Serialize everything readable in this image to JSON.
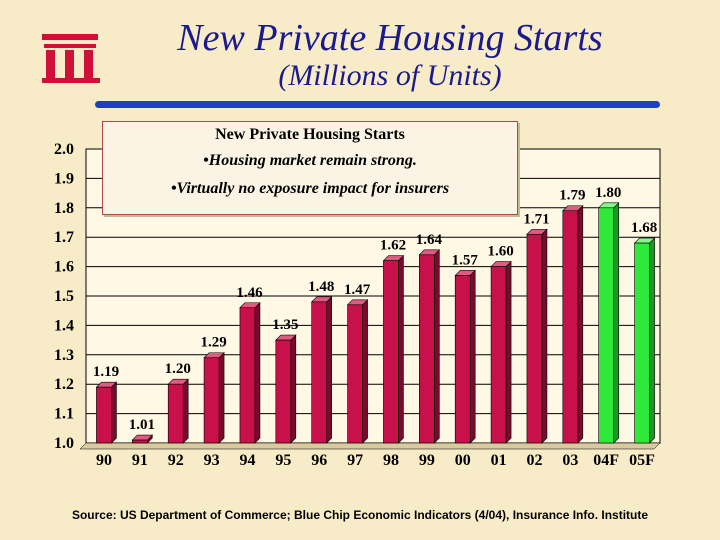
{
  "colors": {
    "title": "#1a1a8c",
    "rule": "#1f3ec7",
    "bar_actual": "#c8104a",
    "bar_forecast": "#2ee83a",
    "logo": "#d1103a"
  },
  "logo": {
    "icon": "iii-logo"
  },
  "title": "New Private Housing Starts",
  "subtitle": "(Millions of Units)",
  "callout": {
    "title": "New Private Housing Starts",
    "lines": [
      "•Housing market remain strong.",
      "•Virtually no exposure impact for insurers"
    ]
  },
  "source": "Source: US Department of Commerce; Blue Chip Economic Indicators (4/04), Insurance Info. Institute",
  "chart_data": {
    "type": "bar",
    "title": "New Private Housing Starts",
    "ylabel": "Millions of Units",
    "ylim": [
      1.0,
      2.0
    ],
    "yticks": [
      "1.0",
      "1.1",
      "1.2",
      "1.3",
      "1.4",
      "1.5",
      "1.6",
      "1.7",
      "1.8",
      "1.9",
      "2.0"
    ],
    "categories": [
      "90",
      "91",
      "92",
      "93",
      "94",
      "95",
      "96",
      "97",
      "98",
      "99",
      "00",
      "01",
      "02",
      "03",
      "04F",
      "05F"
    ],
    "values": [
      1.19,
      1.01,
      1.2,
      1.29,
      1.46,
      1.35,
      1.48,
      1.47,
      1.62,
      1.64,
      1.57,
      1.6,
      1.71,
      1.79,
      1.8,
      1.68
    ],
    "labels": [
      "1.19",
      "1.01",
      "1.20",
      "1.29",
      "1.46",
      "1.35",
      "1.48",
      "1.47",
      "1.62",
      "1.64",
      "1.57",
      "1.60",
      "1.71",
      "1.79",
      "1.80",
      "1.68"
    ],
    "forecast": [
      false,
      false,
      false,
      false,
      false,
      false,
      false,
      false,
      false,
      false,
      false,
      false,
      false,
      false,
      true,
      true
    ],
    "grid": true
  }
}
